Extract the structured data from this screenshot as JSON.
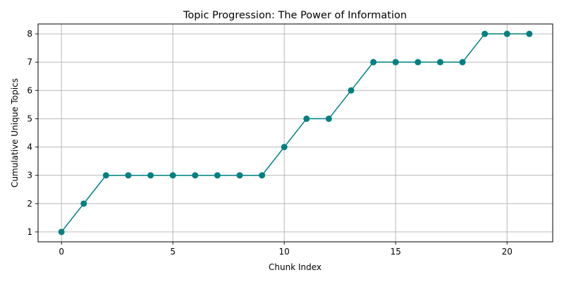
{
  "chart_data": {
    "type": "line",
    "title": "Topic Progression: The Power of Information",
    "xlabel": "Chunk Index",
    "ylabel": "Cumulative Unique Topics",
    "x": [
      0,
      1,
      2,
      3,
      4,
      5,
      6,
      7,
      8,
      9,
      10,
      11,
      12,
      13,
      14,
      15,
      16,
      17,
      18,
      19,
      20,
      21
    ],
    "series": [
      {
        "values": [
          1,
          2,
          3,
          3,
          3,
          3,
          3,
          3,
          3,
          3,
          4,
          5,
          5,
          6,
          7,
          7,
          7,
          7,
          7,
          8,
          8,
          8
        ],
        "color": "#008080",
        "marker": "circle"
      }
    ],
    "xlim": [
      -1.05,
      22.05
    ],
    "ylim": [
      0.65,
      8.35
    ],
    "xticks": [
      0,
      5,
      10,
      15,
      20
    ],
    "yticks": [
      1,
      2,
      3,
      4,
      5,
      6,
      7,
      8
    ],
    "grid": true,
    "colors": {
      "line": "#008080",
      "grid": "#b0b0b0",
      "axes": "#000000"
    }
  }
}
